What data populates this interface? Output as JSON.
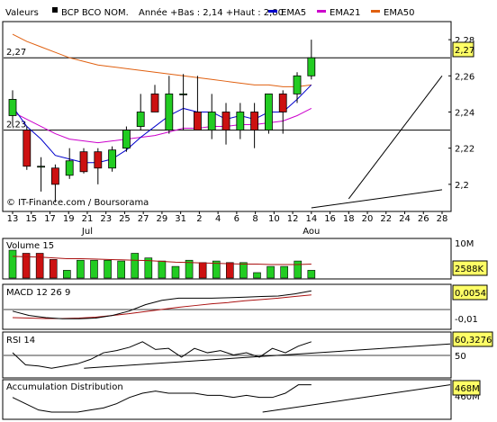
{
  "header": {
    "valeurs_label": "Valeurs",
    "stock_name": "BCP BCO NOM.",
    "range_text": "Année +Bas : 2,14 +Haut : 2,80",
    "legend": [
      {
        "label": "EMA5",
        "color": "#0000cc"
      },
      {
        "label": "EMA21",
        "color": "#cc00cc"
      },
      {
        "label": "EMA50",
        "color": "#e06010"
      }
    ]
  },
  "watermark": "© IT-Finance.com / Boursorama",
  "colors": {
    "up": "#22cc22",
    "down": "#cc1111",
    "wick": "#000000",
    "grid": "#000000",
    "tag_bg": "#ffff66"
  },
  "chart_data": [
    {
      "type": "candlestick",
      "title": "",
      "x_labels": [
        "13",
        "15",
        "17",
        "19",
        "21",
        "23",
        "25",
        "27",
        "29",
        "31",
        "2",
        "4",
        "6",
        "8",
        "10",
        "12",
        "14",
        "16",
        "18",
        "20",
        "22",
        "24",
        "26",
        "28"
      ],
      "x_sublabels": [
        {
          "label": "Jul",
          "at": "21"
        },
        {
          "label": "Aou",
          "at": "14"
        }
      ],
      "y_ticks": [
        2.2,
        2.22,
        2.24,
        2.26,
        2.28
      ],
      "y_tick_labels": [
        "2,2",
        "2,22",
        "2,24",
        "2,26",
        "2,28"
      ],
      "ylim": [
        2.185,
        2.29
      ],
      "hlines": [
        {
          "value": 2.27,
          "label": "2,27"
        },
        {
          "value": 2.23,
          "label": "2,23"
        }
      ],
      "last_value_tag": "2,27",
      "candles": [
        {
          "d": "13",
          "o": 2.238,
          "h": 2.252,
          "l": 2.232,
          "c": 2.247
        },
        {
          "d": "16",
          "o": 2.23,
          "h": 2.232,
          "l": 2.208,
          "c": 2.21
        },
        {
          "d": "17",
          "o": 2.21,
          "h": 2.215,
          "l": 2.196,
          "c": 2.21
        },
        {
          "d": "18",
          "o": 2.209,
          "h": 2.211,
          "l": 2.19,
          "c": 2.2
        },
        {
          "d": "19",
          "o": 2.205,
          "h": 2.22,
          "l": 2.203,
          "c": 2.213
        },
        {
          "d": "20",
          "o": 2.218,
          "h": 2.22,
          "l": 2.206,
          "c": 2.207
        },
        {
          "d": "21",
          "o": 2.218,
          "h": 2.22,
          "l": 2.2,
          "c": 2.209
        },
        {
          "d": "24",
          "o": 2.209,
          "h": 2.221,
          "l": 2.207,
          "c": 2.219
        },
        {
          "d": "25",
          "o": 2.22,
          "h": 2.232,
          "l": 2.218,
          "c": 2.23
        },
        {
          "d": "26",
          "o": 2.232,
          "h": 2.25,
          "l": 2.23,
          "c": 2.24
        },
        {
          "d": "27",
          "o": 2.25,
          "h": 2.255,
          "l": 2.24,
          "c": 2.24
        },
        {
          "d": "28",
          "o": 2.23,
          "h": 2.26,
          "l": 2.228,
          "c": 2.25
        },
        {
          "d": "30",
          "o": 2.25,
          "h": 2.261,
          "l": 2.23,
          "c": 2.25
        },
        {
          "d": "31",
          "o": 2.24,
          "h": 2.26,
          "l": 2.23,
          "c": 2.23
        },
        {
          "d": "1",
          "o": 2.23,
          "h": 2.25,
          "l": 2.225,
          "c": 2.24
        },
        {
          "d": "2",
          "o": 2.24,
          "h": 2.245,
          "l": 2.222,
          "c": 2.23
        },
        {
          "d": "3",
          "o": 2.23,
          "h": 2.245,
          "l": 2.225,
          "c": 2.24
        },
        {
          "d": "6",
          "o": 2.24,
          "h": 2.245,
          "l": 2.22,
          "c": 2.23
        },
        {
          "d": "8",
          "o": 2.23,
          "h": 2.25,
          "l": 2.228,
          "c": 2.25
        },
        {
          "d": "10",
          "o": 2.25,
          "h": 2.252,
          "l": 2.228,
          "c": 2.24
        },
        {
          "d": "13",
          "o": 2.25,
          "h": 2.262,
          "l": 2.245,
          "c": 2.26
        },
        {
          "d": "14",
          "o": 2.26,
          "h": 2.28,
          "l": 2.258,
          "c": 2.27
        }
      ],
      "ema5": [
        2.243,
        2.232,
        2.225,
        2.216,
        2.214,
        2.212,
        2.212,
        2.214,
        2.219,
        2.226,
        2.232,
        2.238,
        2.242,
        2.24,
        2.24,
        2.236,
        2.238,
        2.236,
        2.24,
        2.24,
        2.247,
        2.255
      ],
      "ema21": [
        2.24,
        2.236,
        2.232,
        2.228,
        2.225,
        2.224,
        2.223,
        2.224,
        2.225,
        2.226,
        2.227,
        2.229,
        2.231,
        2.231,
        2.232,
        2.232,
        2.233,
        2.233,
        2.234,
        2.235,
        2.238,
        2.242
      ],
      "ema50": [
        2.283,
        2.279,
        2.276,
        2.273,
        2.27,
        2.268,
        2.266,
        2.265,
        2.264,
        2.263,
        2.262,
        2.261,
        2.26,
        2.259,
        2.258,
        2.257,
        2.256,
        2.255,
        2.255,
        2.254,
        2.254,
        2.255
      ],
      "trendlines": [
        {
          "from": [
            "18",
            2.192
          ],
          "to": [
            "28",
            2.26
          ]
        },
        {
          "from": [
            "14",
            2.187
          ],
          "to": [
            "28",
            2.197
          ]
        }
      ]
    },
    {
      "type": "bar",
      "title": "Volume 15",
      "y_tick_labels": [
        "10M"
      ],
      "last_value_tag": "2588K",
      "values": [
        7.2,
        6.4,
        6.4,
        4.8,
        2.0,
        4.6,
        4.6,
        4.6,
        4.4,
        6.4,
        5.2,
        4.4,
        3.0,
        4.6,
        4.0,
        4.4,
        4.0,
        4.0,
        1.4,
        3.0,
        3.0,
        4.4,
        2.0
      ],
      "up_flags": [
        1,
        0,
        0,
        0,
        1,
        1,
        1,
        1,
        1,
        1,
        1,
        1,
        1,
        1,
        0,
        1,
        0,
        1,
        1,
        1,
        1,
        1,
        1
      ],
      "ma_line": [
        5.6,
        5.5,
        5.4,
        5.2,
        5.0,
        5.0,
        4.9,
        4.8,
        4.7,
        4.6,
        4.5,
        4.3,
        4.1,
        4.0,
        3.9,
        3.8,
        3.7,
        3.6,
        3.6,
        3.5,
        3.5,
        3.5,
        3.6
      ]
    },
    {
      "type": "line",
      "title": "MACD 12 26 9",
      "y_tick_labels": [
        "-0,01"
      ],
      "last_value_tag": "0,0054",
      "macd": [
        -0.004,
        -0.006,
        -0.007,
        -0.0075,
        -0.0075,
        -0.0072,
        -0.006,
        -0.004,
        -0.001,
        0.001,
        0.002,
        0.002,
        0.002,
        0.0022,
        0.0025,
        0.0028,
        0.003,
        0.004,
        0.0054
      ],
      "signal": [
        -0.007,
        -0.0072,
        -0.0074,
        -0.0074,
        -0.0072,
        -0.0068,
        -0.006,
        -0.0052,
        -0.0042,
        -0.0032,
        -0.0022,
        -0.0014,
        -0.0006,
        0.0,
        0.0008,
        0.0014,
        0.002,
        0.0028,
        0.0035
      ]
    },
    {
      "type": "line",
      "title": "RSI 14",
      "y_tick_labels": [
        "50"
      ],
      "last_value_tag": "60,3276",
      "rsi": [
        52,
        41,
        40,
        38,
        40,
        42,
        46,
        52,
        54,
        57,
        62,
        55,
        56,
        48,
        56,
        52,
        54,
        50,
        52,
        48,
        56,
        52,
        58,
        62
      ],
      "trend": {
        "from": [
          0.18,
          38
        ],
        "to": [
          1.0,
          60
        ]
      }
    },
    {
      "type": "line",
      "title": "Accumulation Distribution",
      "y_tick_labels": [
        "460M"
      ],
      "last_value_tag": "468M",
      "ad": [
        462,
        459,
        456,
        455,
        455,
        455,
        456,
        457,
        459,
        462,
        464,
        465,
        464,
        464,
        464,
        463,
        463,
        462,
        463,
        462,
        462,
        464,
        468,
        468
      ],
      "trend": {
        "from": [
          0.58,
          455
        ],
        "to": [
          1.0,
          468
        ]
      }
    }
  ]
}
